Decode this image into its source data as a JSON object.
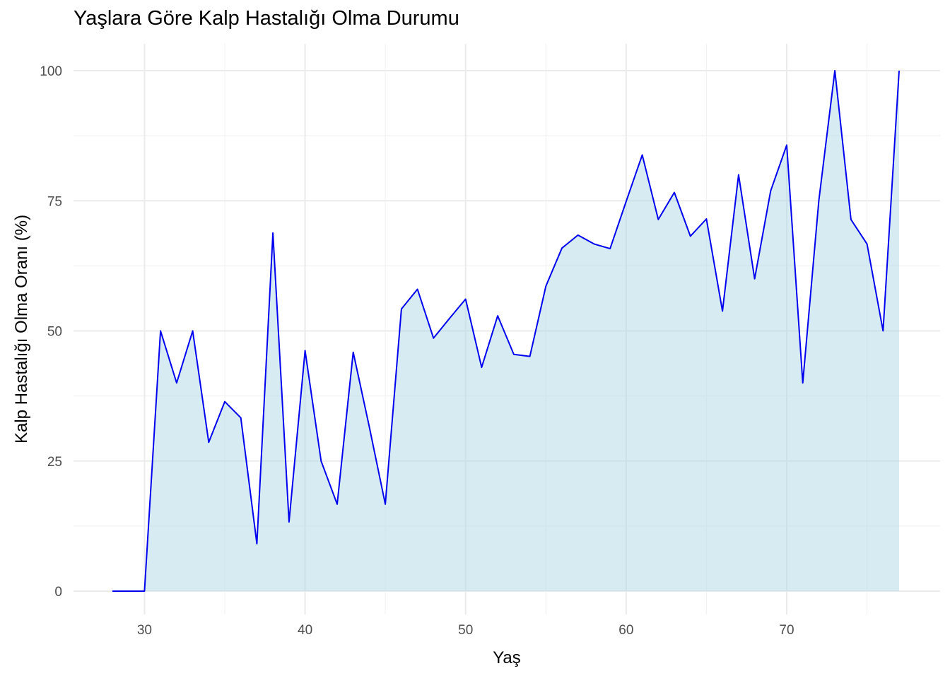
{
  "chart_data": {
    "type": "area",
    "title": "Yaşlara Göre Kalp Hastalığı Olma Durumu",
    "xlabel": "Yaş",
    "ylabel": "Kalp Hastalığı Olma Oranı (%)",
    "xlim": [
      28,
      77
    ],
    "ylim": [
      0,
      100
    ],
    "x_ticks": [
      30,
      40,
      50,
      60,
      70
    ],
    "y_ticks": [
      0,
      25,
      50,
      75,
      100
    ],
    "grid": true,
    "line_color": "#0000ee",
    "fill_color": "#add8e6",
    "x": [
      28,
      29,
      30,
      31,
      32,
      33,
      34,
      35,
      36,
      37,
      38,
      39,
      40,
      41,
      42,
      43,
      44,
      45,
      46,
      47,
      48,
      49,
      50,
      51,
      52,
      53,
      54,
      55,
      56,
      57,
      58,
      59,
      60,
      61,
      62,
      63,
      64,
      65,
      66,
      67,
      68,
      69,
      70,
      71,
      72,
      73,
      74,
      75,
      76,
      77
    ],
    "y": [
      0,
      0,
      0,
      50,
      40,
      50,
      28.6,
      36.4,
      33.3,
      9.1,
      68.8,
      13.3,
      46.2,
      25,
      16.7,
      45.9,
      31.6,
      16.7,
      54.2,
      58,
      48.6,
      52.4,
      56.1,
      43,
      52.9,
      45.5,
      45.1,
      58.6,
      65.9,
      68.4,
      66.7,
      65.8,
      74.9,
      83.8,
      71.4,
      76.6,
      68.2,
      71.5,
      53.8,
      80,
      60,
      76.9,
      85.7,
      40,
      75,
      100,
      71.4,
      66.7,
      50,
      100
    ]
  }
}
